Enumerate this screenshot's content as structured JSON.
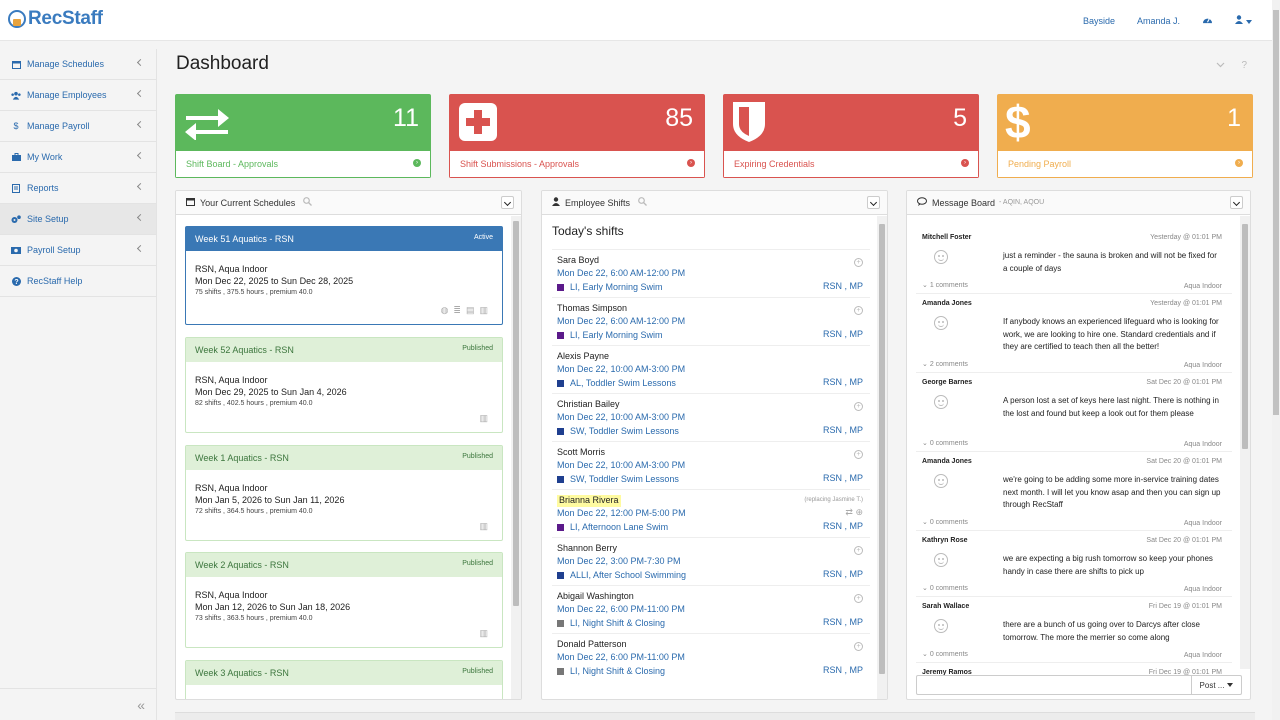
{
  "app": {
    "logo": "RecStaff"
  },
  "topbar": {
    "location": "Bayside",
    "user": "Amanda J."
  },
  "sidebar": {
    "items": [
      {
        "label": "Manage Schedules",
        "icon": "calendar-icon"
      },
      {
        "label": "Manage Employees",
        "icon": "users-icon"
      },
      {
        "label": "Manage Payroll",
        "icon": "dollar-icon"
      },
      {
        "label": "My Work",
        "icon": "briefcase-icon"
      },
      {
        "label": "Reports",
        "icon": "report-icon"
      },
      {
        "label": "Site Setup",
        "icon": "gears-icon"
      },
      {
        "label": "Payroll Setup",
        "icon": "money-icon"
      },
      {
        "label": "RecStaff Help",
        "icon": "help-icon"
      }
    ]
  },
  "page": {
    "title": "Dashboard"
  },
  "kpis": [
    {
      "value": "11",
      "label": "Shift Board - Approvals",
      "color": "#5cb85c",
      "icon": "swap-arrows-icon"
    },
    {
      "value": "85",
      "label": "Shift Submissions - Approvals",
      "color": "#d9534f",
      "icon": "plus-square-icon"
    },
    {
      "value": "5",
      "label": "Expiring Credentials",
      "color": "#d9534f",
      "icon": "shield-icon"
    },
    {
      "value": "1",
      "label": "Pending Payroll",
      "color": "#f0ad4e",
      "icon": "dollar-icon"
    }
  ],
  "schedules_panel": {
    "title": "Your Current Schedules",
    "items": [
      {
        "name": "Week 51 Aquatics - RSN",
        "status": "Active",
        "site": "RSN, Aqua Indoor",
        "range": "Mon Dec 22, 2025 to Sun Dec 28, 2025",
        "meta": "75 shifts , 375.5 hours , premium 40.0"
      },
      {
        "name": "Week 52 Aquatics - RSN",
        "status": "Published",
        "site": "RSN, Aqua Indoor",
        "range": "Mon Dec 29, 2025 to Sun Jan 4, 2026",
        "meta": "82 shifts , 402.5 hours , premium 40.0"
      },
      {
        "name": "Week 1 Aquatics - RSN",
        "status": "Published",
        "site": "RSN, Aqua Indoor",
        "range": "Mon Jan 5, 2026 to Sun Jan 11, 2026",
        "meta": "72 shifts , 364.5 hours , premium 40.0"
      },
      {
        "name": "Week 2 Aquatics - RSN",
        "status": "Published",
        "site": "RSN, Aqua Indoor",
        "range": "Mon Jan 12, 2026 to Sun Jan 18, 2026",
        "meta": "73 shifts , 363.5 hours , premium 40.0"
      },
      {
        "name": "Week 3 Aquatics - RSN",
        "status": "Published",
        "site": "",
        "range": "",
        "meta": ""
      }
    ]
  },
  "shifts_panel": {
    "title": "Employee Shifts",
    "heading": "Today's shifts",
    "items": [
      {
        "name": "Sara Boyd",
        "time": "Mon Dec 22, 6:00 AM-12:00 PM",
        "position": "LI, Early Morning Swim",
        "tags": "RSN , MP",
        "color": "#5b1a8a",
        "note": ""
      },
      {
        "name": "Thomas Simpson",
        "time": "Mon Dec 22, 6:00 AM-12:00 PM",
        "position": "LI, Early Morning Swim",
        "tags": "RSN , MP",
        "color": "#5b1a8a",
        "note": ""
      },
      {
        "name": "Alexis Payne",
        "time": "Mon Dec 22, 10:00 AM-3:00 PM",
        "position": "AL, Toddler Swim Lessons",
        "tags": "RSN , MP",
        "color": "#1f3f8f",
        "note": ""
      },
      {
        "name": "Christian Bailey",
        "time": "Mon Dec 22, 10:00 AM-3:00 PM",
        "position": "SW, Toddler Swim Lessons",
        "tags": "RSN , MP",
        "color": "#1f3f8f",
        "note": ""
      },
      {
        "name": "Scott Morris",
        "time": "Mon Dec 22, 10:00 AM-3:00 PM",
        "position": "SW, Toddler Swim Lessons",
        "tags": "RSN , MP",
        "color": "#1f3f8f",
        "note": ""
      },
      {
        "name": "Brianna Rivera",
        "time": "Mon Dec 22, 12:00 PM-5:00 PM",
        "position": "LI, Afternoon Lane Swim",
        "tags": "RSN , MP",
        "color": "#5b1a8a",
        "note": "(replacing Jasmine T.)"
      },
      {
        "name": "Shannon Berry",
        "time": "Mon Dec 22, 3:00 PM-7:30 PM",
        "position": "ALLI, After School Swimming",
        "tags": "RSN , MP",
        "color": "#1f3f8f",
        "note": ""
      },
      {
        "name": "Abigail Washington",
        "time": "Mon Dec 22, 6:00 PM-11:00 PM",
        "position": "LI, Night Shift & Closing",
        "tags": "RSN , MP",
        "color": "#777777",
        "note": ""
      },
      {
        "name": "Donald Patterson",
        "time": "Mon Dec 22, 6:00 PM-11:00 PM",
        "position": "LI, Night Shift & Closing",
        "tags": "RSN , MP",
        "color": "#777777",
        "note": ""
      }
    ]
  },
  "messages_panel": {
    "title": "Message Board",
    "subtitle": "- AQIN, AQOU",
    "post_label": "Post ...",
    "items": [
      {
        "name": "Mitchell Foster",
        "time": "Yesterday @ 01:01 PM",
        "text": "just a reminder - the sauna is broken and will not be fixed for a couple of days",
        "comments": "1 comments",
        "location": "Aqua Indoor"
      },
      {
        "name": "Amanda Jones",
        "time": "Yesterday @ 01:01 PM",
        "text": "If anybody knows an experienced lifeguard who is looking for work, we are looking to hire one. Standard credentials and if they are certified to teach then all the better!",
        "comments": "2 comments",
        "location": "Aqua Indoor"
      },
      {
        "name": "George Barnes",
        "time": "Sat Dec 20 @ 01:01 PM",
        "text": "A person lost a set of keys here last night. There is nothing in the lost and found but keep a look out for them please",
        "comments": "0 comments",
        "location": "Aqua Indoor"
      },
      {
        "name": "Amanda Jones",
        "time": "Sat Dec 20 @ 01:01 PM",
        "text": "we're going to be adding some more in-service training dates next month. I will let you know asap and then you can sign up through RecStaff",
        "comments": "0 comments",
        "location": "Aqua Indoor"
      },
      {
        "name": "Kathryn Rose",
        "time": "Sat Dec 20 @ 01:01 PM",
        "text": "we are expecting a big rush tomorrow so keep your phones handy in case there are shifts to pick up",
        "comments": "0 comments",
        "location": "Aqua Indoor"
      },
      {
        "name": "Sarah Wallace",
        "time": "Fri Dec 19 @ 01:01 PM",
        "text": "there are a bunch of us going over to Darcys after close tomorrow. The more the merrier so come along",
        "comments": "0 comments",
        "location": "Aqua Indoor"
      },
      {
        "name": "Jeremy Ramos",
        "time": "Fri Dec 19 @ 01:01 PM",
        "text": "",
        "comments": "",
        "location": ""
      }
    ]
  }
}
